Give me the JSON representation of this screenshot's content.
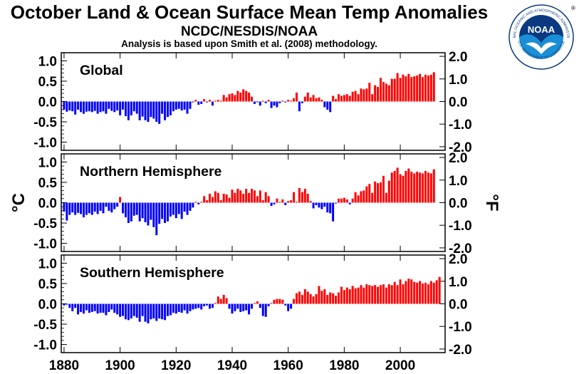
{
  "title": "October Land & Ocean Surface Mean Temp Anomalies",
  "subtitle": "NCDC/NESDIS/NOAA",
  "note": "Analysis is based upon Smith et al. (2008) methodology.",
  "logo": {
    "text": "NOAA",
    "ring_top": "NATIONAL OCEANIC AND ATMOSPHERIC ADMINISTRATION",
    "ring_bottom": "U.S. DEPARTMENT OF COMMERCE",
    "registered": "®"
  },
  "colors": {
    "positive": "#ff0000",
    "negative": "#0000ff",
    "logo_blue": "#1a8fd6",
    "logo_navy": "#0b3a80"
  },
  "chart_data": [
    {
      "type": "bar",
      "panel_label": "Global",
      "x_start": 1880,
      "ylim": [
        -1.2,
        1.2
      ],
      "yticks": [
        -1.0,
        -0.5,
        0.0,
        0.5,
        1.0
      ],
      "ylabel_left": "°C",
      "y2ticks": [
        -2.0,
        -1.0,
        0.0,
        1.0,
        2.0
      ],
      "y2label": "°F",
      "values": [
        -0.2,
        -0.25,
        -0.22,
        -0.24,
        -0.32,
        -0.2,
        -0.26,
        -0.3,
        -0.25,
        -0.24,
        -0.26,
        -0.23,
        -0.3,
        -0.26,
        -0.24,
        -0.3,
        -0.18,
        -0.23,
        -0.26,
        -0.22,
        -0.34,
        -0.2,
        -0.36,
        -0.46,
        -0.34,
        -0.24,
        -0.3,
        -0.46,
        -0.37,
        -0.46,
        -0.5,
        -0.38,
        -0.42,
        -0.5,
        -0.55,
        -0.3,
        -0.46,
        -0.38,
        -0.34,
        -0.24,
        -0.2,
        -0.18,
        -0.22,
        -0.2,
        -0.3,
        -0.18,
        -0.02,
        0.04,
        -0.08,
        -0.06,
        0.06,
        -0.02,
        0.04,
        -0.1,
        0.02,
        0.04,
        0.02,
        0.16,
        0.1,
        0.18,
        0.2,
        0.16,
        0.26,
        0.22,
        0.3,
        0.26,
        0.22,
        0.12,
        -0.06,
        -0.02,
        -0.1,
        0.02,
        -0.04,
        0.04,
        -0.16,
        -0.1,
        -0.14,
        -0.04,
        0.02,
        -0.02,
        0.04,
        0.02,
        0.08,
        0.22,
        -0.24,
        -0.04,
        0.12,
        0.22,
        0.1,
        0.16,
        0.08,
        0.1,
        0.04,
        -0.14,
        -0.2,
        -0.26,
        0.14,
        0.06,
        0.18,
        0.14,
        0.16,
        0.18,
        0.14,
        0.24,
        0.26,
        0.18,
        0.32,
        0.3,
        0.32,
        0.46,
        0.18,
        0.4,
        0.36,
        0.58,
        0.48,
        0.44,
        0.4,
        0.56,
        0.56,
        0.7,
        0.58,
        0.66,
        0.62,
        0.68,
        0.6,
        0.62,
        0.64,
        0.68,
        0.6,
        0.66,
        0.64,
        0.66,
        0.72
      ]
    },
    {
      "type": "bar",
      "panel_label": "Northern Hemisphere",
      "x_start": 1880,
      "ylim": [
        -1.2,
        1.2
      ],
      "yticks": [
        -1.0,
        -0.5,
        0.0,
        0.5,
        1.0
      ],
      "ylabel_left": "°C",
      "y2ticks": [
        -2.0,
        -1.0,
        0.0,
        1.0,
        2.0
      ],
      "y2label": "°F",
      "values": [
        -0.22,
        -0.44,
        -0.3,
        -0.24,
        -0.3,
        -0.25,
        -0.28,
        -0.36,
        -0.3,
        -0.26,
        -0.3,
        -0.22,
        -0.28,
        -0.2,
        -0.26,
        -0.1,
        -0.2,
        -0.24,
        -0.16,
        -0.1,
        0.14,
        -0.26,
        -0.36,
        -0.5,
        -0.46,
        -0.32,
        -0.3,
        -0.46,
        -0.38,
        -0.48,
        -0.56,
        -0.42,
        -0.6,
        -0.8,
        -0.52,
        -0.4,
        -0.5,
        -0.46,
        -0.34,
        -0.3,
        -0.38,
        -0.28,
        -0.4,
        -0.22,
        -0.3,
        -0.2,
        -0.12,
        0.02,
        -0.04,
        0.02,
        0.16,
        0.06,
        0.22,
        0.14,
        0.28,
        0.24,
        0.06,
        0.22,
        0.2,
        0.12,
        0.32,
        0.24,
        0.34,
        0.3,
        0.22,
        0.34,
        0.24,
        0.34,
        0.3,
        0.16,
        0.3,
        0.06,
        0.26,
        0.16,
        -0.08,
        -0.04,
        0.1,
        0.02,
        0.08,
        -0.06,
        0.04,
        0.06,
        0.26,
        0.02,
        0.36,
        0.26,
        0.34,
        0.22,
        0.04,
        -0.14,
        -0.06,
        -0.12,
        -0.16,
        -0.1,
        -0.24,
        -0.26,
        -0.46,
        -0.02,
        0.1,
        0.1,
        0.12,
        0.08,
        -0.04,
        0.1,
        0.26,
        0.18,
        0.28,
        0.3,
        0.4,
        0.46,
        0.24,
        0.52,
        0.48,
        0.5,
        0.66,
        0.24,
        0.54,
        0.74,
        0.78,
        0.86,
        0.7,
        0.66,
        0.78,
        0.84,
        0.76,
        0.72,
        0.76,
        0.74,
        0.72,
        0.78,
        0.74,
        0.72,
        0.82
      ]
    },
    {
      "type": "bar",
      "panel_label": "Southern Hemisphere",
      "x_start": 1880,
      "ylim": [
        -1.2,
        1.2
      ],
      "yticks": [
        -1.0,
        -0.5,
        0.0,
        0.5,
        1.0
      ],
      "ylabel_left": "°C",
      "y2ticks": [
        -2.0,
        -1.0,
        0.0,
        1.0,
        2.0
      ],
      "y2label": "°F",
      "values": [
        -0.04,
        -0.02,
        -0.1,
        -0.18,
        -0.1,
        -0.26,
        -0.2,
        -0.24,
        -0.16,
        -0.22,
        -0.2,
        -0.18,
        -0.24,
        -0.22,
        -0.22,
        -0.28,
        -0.2,
        -0.14,
        -0.22,
        -0.26,
        -0.32,
        -0.3,
        -0.38,
        -0.4,
        -0.36,
        -0.3,
        -0.34,
        -0.44,
        -0.3,
        -0.44,
        -0.48,
        -0.38,
        -0.36,
        -0.42,
        -0.36,
        -0.38,
        -0.4,
        -0.3,
        -0.28,
        -0.22,
        -0.24,
        -0.2,
        -0.22,
        -0.16,
        -0.24,
        -0.18,
        -0.14,
        -0.12,
        -0.1,
        -0.14,
        -0.06,
        -0.04,
        -0.12,
        -0.1,
        0.02,
        0.18,
        0.12,
        0.22,
        0.14,
        -0.12,
        -0.24,
        -0.18,
        -0.12,
        -0.2,
        -0.18,
        -0.16,
        -0.26,
        -0.12,
        0.02,
        0.06,
        -0.1,
        -0.3,
        -0.32,
        -0.06,
        0.02,
        0.1,
        0.12,
        0.12,
        0.1,
        -0.04,
        -0.18,
        -0.12,
        0.12,
        0.26,
        0.3,
        0.22,
        0.36,
        0.3,
        0.24,
        0.18,
        0.24,
        0.44,
        0.32,
        0.36,
        0.22,
        0.28,
        0.26,
        0.2,
        0.28,
        0.42,
        0.34,
        0.4,
        0.36,
        0.44,
        0.38,
        0.4,
        0.46,
        0.4,
        0.48,
        0.46,
        0.44,
        0.46,
        0.42,
        0.46,
        0.48,
        0.4,
        0.48,
        0.46,
        0.54,
        0.46,
        0.6,
        0.48,
        0.56,
        0.62,
        0.6,
        0.54,
        0.52,
        0.56,
        0.5,
        0.52,
        0.48,
        0.56,
        0.52,
        0.58,
        0.66
      ]
    }
  ],
  "x_axis": {
    "ticks": [
      1880,
      1900,
      1920,
      1940,
      1960,
      1980,
      2000
    ],
    "range": [
      1879,
      2016
    ]
  }
}
